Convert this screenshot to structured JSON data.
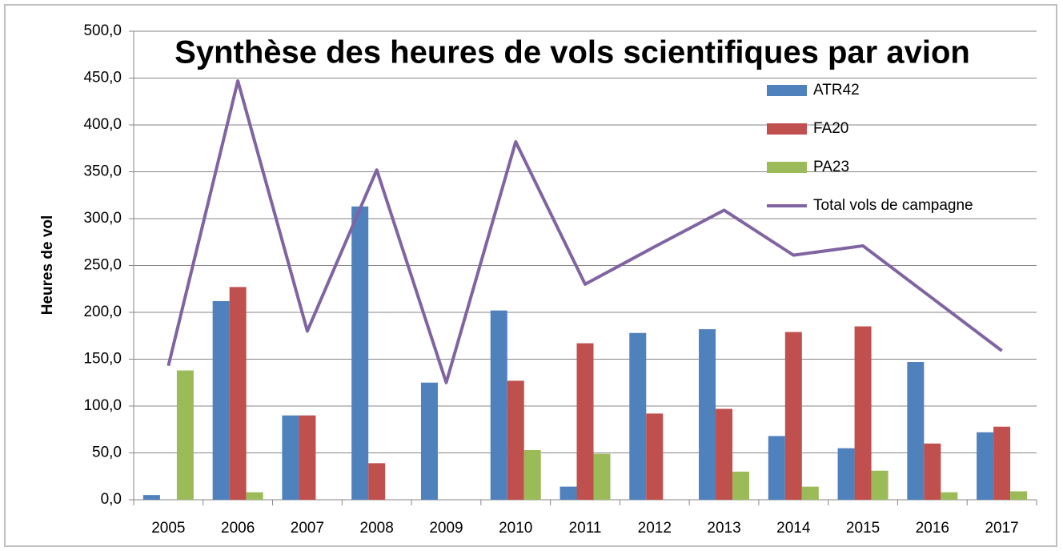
{
  "chart_data": {
    "type": "bar_line",
    "title": "Synthèse des heures de vols scientifiques par avion",
    "y_axis_label": "Heures de vol",
    "categories": [
      "2005",
      "2006",
      "2007",
      "2008",
      "2009",
      "2010",
      "2011",
      "2012",
      "2013",
      "2014",
      "2015",
      "2016",
      "2017"
    ],
    "series": [
      {
        "name": "ATR42",
        "type": "bar",
        "color": "#4f81bd",
        "values": [
          5,
          212,
          90,
          313,
          125,
          202,
          14,
          178,
          182,
          68,
          55,
          147,
          72
        ]
      },
      {
        "name": "FA20",
        "type": "bar",
        "color": "#c0504d",
        "values": [
          0,
          227,
          90,
          39,
          0,
          127,
          167,
          92,
          97,
          179,
          185,
          60,
          78
        ]
      },
      {
        "name": "PA23",
        "type": "bar",
        "color": "#9bbb59",
        "values": [
          138,
          8,
          0,
          0,
          0,
          53,
          49,
          0,
          30,
          14,
          31,
          8,
          9
        ]
      },
      {
        "name": "Total vols de campagne",
        "type": "line",
        "color": "#8064a2",
        "values": [
          143,
          447,
          180,
          352,
          125,
          382,
          230,
          270,
          309,
          261,
          271,
          215,
          159
        ]
      }
    ],
    "ylim": [
      0,
      500
    ],
    "yticks": [
      {
        "value": 0,
        "label": "0,0"
      },
      {
        "value": 50,
        "label": "50,0"
      },
      {
        "value": 100,
        "label": "100,0"
      },
      {
        "value": 150,
        "label": "150,0"
      },
      {
        "value": 200,
        "label": "200,0"
      },
      {
        "value": 250,
        "label": "250,0"
      },
      {
        "value": 300,
        "label": "300,0"
      },
      {
        "value": 350,
        "label": "350,0"
      },
      {
        "value": 400,
        "label": "400,0"
      },
      {
        "value": 450,
        "label": "450,0"
      },
      {
        "value": 500,
        "label": "500,0"
      }
    ],
    "grid": true,
    "legend": "upper right"
  }
}
